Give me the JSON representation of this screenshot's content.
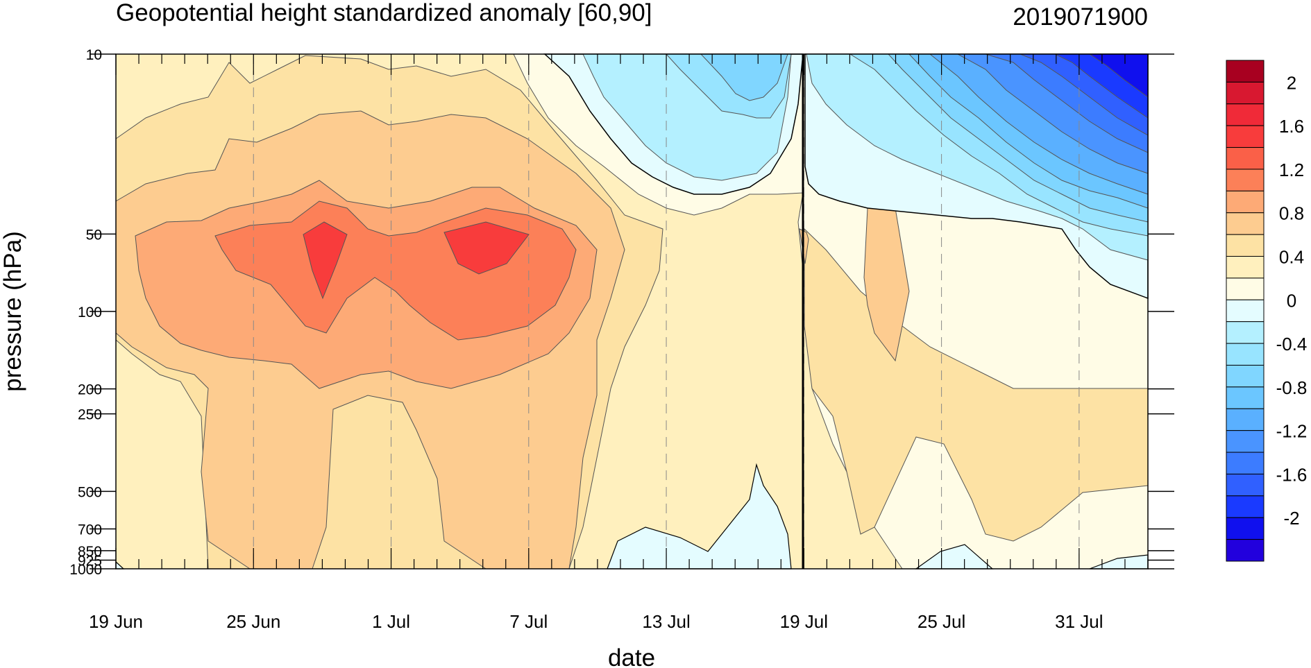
{
  "chart_data": {
    "type": "heatmap",
    "title": "Geopotential height standardized anomaly [60,90]",
    "date_label": "2019071900",
    "xlabel": "date",
    "ylabel": "pressure (hPa)",
    "x_ticks": [
      "19 Jun",
      "25 Jun",
      "1 Jul",
      "7 Jul",
      "13 Jul",
      "19 Jul",
      "25 Jul",
      "31 Jul"
    ],
    "x_start": "2019-06-19",
    "x_end": "2019-08-03",
    "y_ticks": [
      "10",
      "50",
      "100",
      "200",
      "250",
      "500",
      "700",
      "850",
      "925",
      "1000"
    ],
    "y_scale": "log",
    "y_range": [
      1000,
      10
    ],
    "marked_date": "19 Jul",
    "colorbar": {
      "levels": [
        -2.2,
        -2,
        -1.8,
        -1.6,
        -1.4,
        -1.2,
        -1,
        -0.8,
        -0.6,
        -0.4,
        -0.2,
        0,
        0.2,
        0.4,
        0.6,
        0.8,
        1,
        1.2,
        1.4,
        1.6,
        1.8,
        2,
        2.2
      ],
      "colors": [
        "#2200dd",
        "#1010ee",
        "#1a3aff",
        "#3060ff",
        "#3c7cff",
        "#4a94ff",
        "#5ab0ff",
        "#6bc6ff",
        "#80d6ff",
        "#98e4ff",
        "#b4f0ff",
        "#e4fcff",
        "#fffce6",
        "#fff0be",
        "#fde2a4",
        "#fdcc90",
        "#fdaa76",
        "#fc8058",
        "#fa6048",
        "#f83c3c",
        "#f02a38",
        "#d81830",
        "#a80020"
      ],
      "tick_labels": [
        "2",
        "1.6",
        "1.2",
        "0.8",
        "0.4",
        "0",
        "-0.4",
        "-0.8",
        "-1.2",
        "-1.6",
        "-2"
      ]
    },
    "grid": "vertical dashed at date ticks",
    "anomaly_at_50hPa": [
      {
        "date": "19 Jun",
        "value": 0.7
      },
      {
        "date": "25 Jun",
        "value": 1.1
      },
      {
        "date": "28 Jun",
        "value": 1.6
      },
      {
        "date": "1 Jul",
        "value": 1.1
      },
      {
        "date": "5 Jul",
        "value": 1.6
      },
      {
        "date": "7 Jul",
        "value": 1.2
      },
      {
        "date": "13 Jul",
        "value": 0.3
      },
      {
        "date": "19 Jul",
        "value": 0.2
      },
      {
        "date": "25 Jul",
        "value": 0.0
      },
      {
        "date": "31 Jul",
        "value": -0.4
      }
    ],
    "anomaly_at_10hPa": [
      {
        "date": "19 Jun",
        "value": 0.4
      },
      {
        "date": "25 Jun",
        "value": 0.6
      },
      {
        "date": "1 Jul",
        "value": 0.2
      },
      {
        "date": "7 Jul",
        "value": 0.2
      },
      {
        "date": "13 Jul",
        "value": -0.5
      },
      {
        "date": "19 Jul",
        "value": -0.4
      },
      {
        "date": "25 Jul",
        "value": -0.9
      },
      {
        "date": "31 Jul",
        "value": -1.9
      }
    ]
  }
}
